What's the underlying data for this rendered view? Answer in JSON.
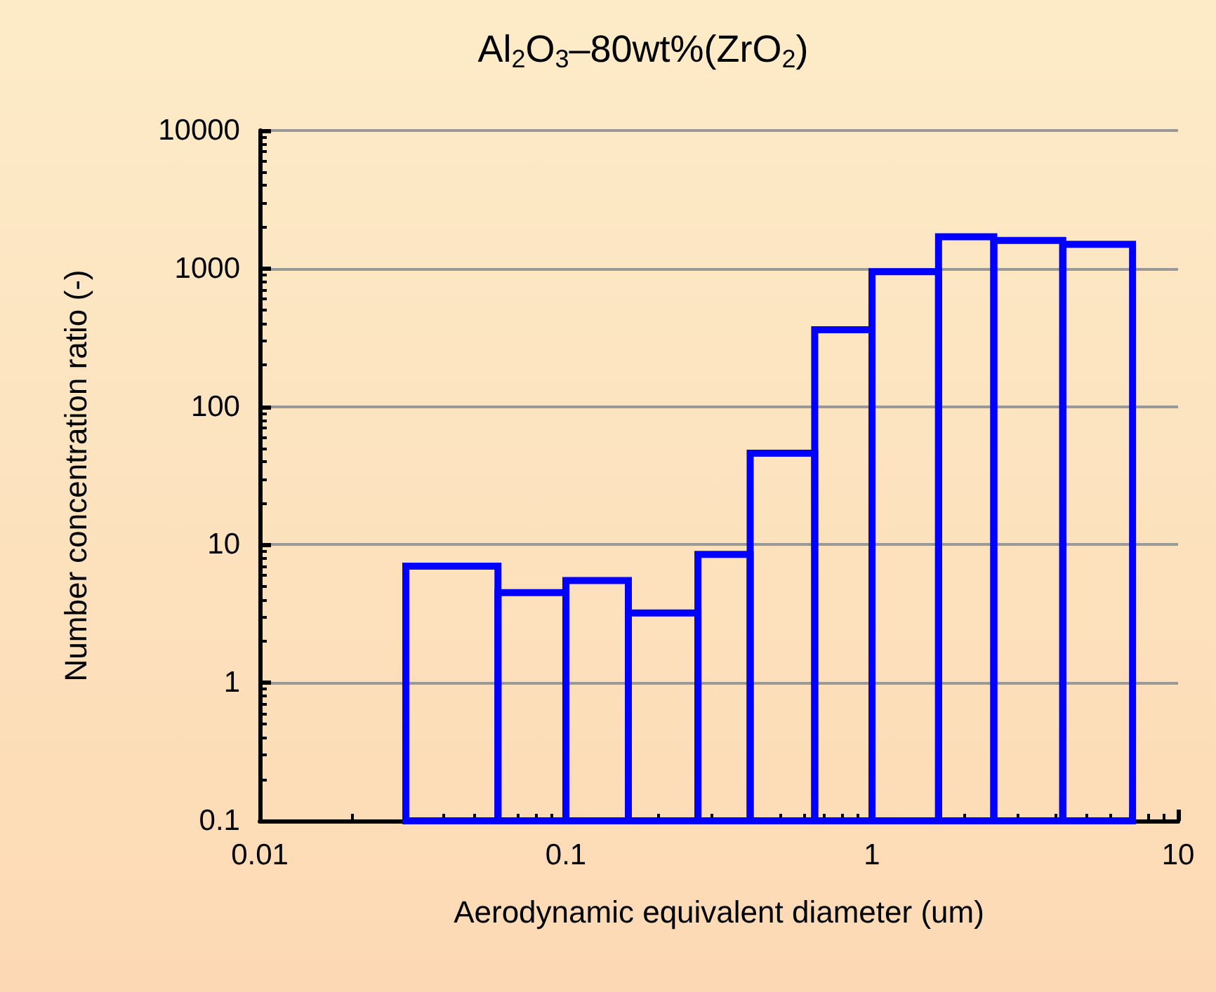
{
  "chart_data": {
    "type": "histogram",
    "title": "Al$_{2}$O$_{3}$–80wt%(ZrO$_{2}$)",
    "xlabel": "Aerodynamic equivalent diameter (um)",
    "ylabel": "Number concentration ratio (-)",
    "bins": [
      0.03,
      0.06,
      0.1,
      0.16,
      0.27,
      0.4,
      0.65,
      1.0,
      1.65,
      2.5,
      4.2,
      7.1
    ],
    "values": [
      7,
      4.5,
      5.5,
      3.2,
      8.5,
      46,
      360,
      950,
      1700,
      1600,
      1500
    ],
    "color": "#0000ff",
    "log": "xy",
    "grid": "y",
    "xlim": [
      0.01,
      10
    ],
    "xticks": [
      0.01,
      0.1,
      1,
      10
    ],
    "ylim": [
      0.1,
      10000
    ],
    "yticks": [
      0.1,
      1,
      10,
      100,
      1000,
      10000
    ]
  }
}
